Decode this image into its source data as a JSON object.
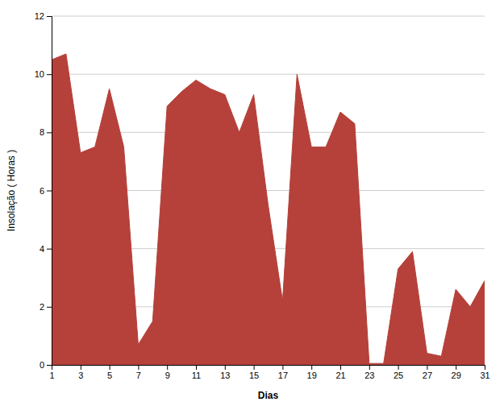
{
  "chart_data": {
    "type": "area",
    "x": [
      1,
      2,
      3,
      4,
      5,
      6,
      7,
      8,
      9,
      10,
      11,
      12,
      13,
      14,
      15,
      16,
      17,
      18,
      19,
      20,
      21,
      22,
      23,
      24,
      25,
      26,
      27,
      28,
      29,
      30,
      31
    ],
    "values": [
      10.5,
      10.7,
      7.3,
      7.5,
      9.5,
      7.5,
      0.7,
      1.5,
      8.9,
      9.4,
      9.8,
      9.5,
      9.3,
      8.0,
      9.3,
      5.5,
      2.2,
      10.0,
      7.5,
      7.5,
      8.7,
      8.3,
      0.05,
      0.05,
      3.3,
      3.9,
      0.4,
      0.3,
      2.6,
      2.0,
      2.9
    ],
    "color": "#b5413a",
    "x_label": "Dias",
    "y_label": "Insolação ( Horas )",
    "xlim": [
      1,
      31
    ],
    "xticks": [
      1,
      3,
      5,
      7,
      9,
      11,
      13,
      15,
      17,
      19,
      21,
      23,
      25,
      27,
      29,
      31
    ],
    "ylim": [
      0,
      12
    ],
    "yticks": [
      0,
      2,
      4,
      6,
      8,
      10,
      12
    ],
    "grid": true
  }
}
